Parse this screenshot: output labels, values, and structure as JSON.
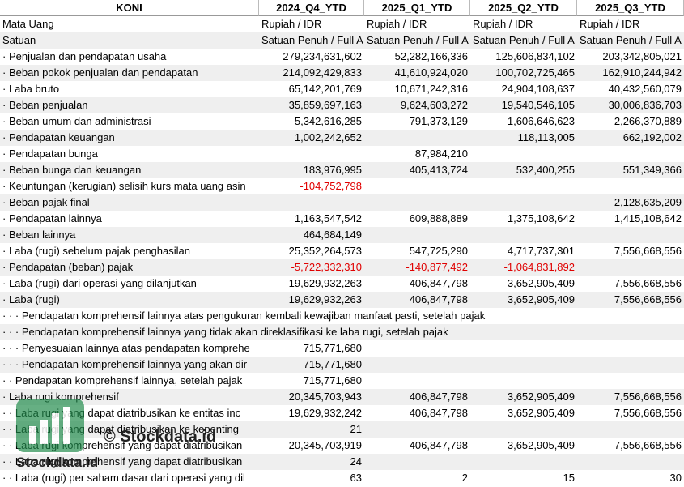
{
  "table": {
    "header": [
      "KONI",
      "2024_Q4_YTD",
      "2025_Q1_YTD",
      "2025_Q2_YTD",
      "2025_Q3_YTD"
    ],
    "rows": [
      [
        "Mata Uang",
        "Rupiah / IDR",
        "Rupiah / IDR",
        "Rupiah / IDR",
        "Rupiah / IDR"
      ],
      [
        "Satuan",
        "Satuan Penuh / Full A",
        "Satuan Penuh / Full A",
        "Satuan Penuh / Full A",
        "Satuan Penuh / Full A"
      ],
      [
        "· Penjualan dan pendapatan usaha",
        "279,234,631,602",
        "52,282,166,336",
        "125,606,834,102",
        "203,342,805,021"
      ],
      [
        "· Beban pokok penjualan dan pendapatan",
        "214,092,429,833",
        "41,610,924,020",
        "100,702,725,465",
        "162,910,244,942"
      ],
      [
        "· Laba bruto",
        "65,142,201,769",
        "10,671,242,316",
        "24,904,108,637",
        "40,432,560,079"
      ],
      [
        "· Beban penjualan",
        "35,859,697,163",
        "9,624,603,272",
        "19,540,546,105",
        "30,006,836,703"
      ],
      [
        "· Beban umum dan administrasi",
        "5,342,616,285",
        "791,373,129",
        "1,606,646,623",
        "2,266,370,889"
      ],
      [
        "· Pendapatan keuangan",
        "1,002,242,652",
        null,
        "118,113,005",
        "662,192,002"
      ],
      [
        "· Pendapatan bunga",
        null,
        "87,984,210",
        null,
        null
      ],
      [
        "· Beban bunga dan keuangan",
        "183,976,995",
        "405,413,724",
        "532,400,255",
        "551,349,366"
      ],
      [
        "· Keuntungan (kerugian) selisih kurs mata uang asin",
        "-104,752,798",
        null,
        null,
        null
      ],
      [
        "· Beban pajak final",
        null,
        null,
        null,
        "2,128,635,209"
      ],
      [
        "· Pendapatan lainnya",
        "1,163,547,542",
        "609,888,889",
        "1,375,108,642",
        "1,415,108,642"
      ],
      [
        "· Beban lainnya",
        "464,684,149",
        null,
        null,
        null
      ],
      [
        "· Laba (rugi) sebelum pajak penghasilan",
        "25,352,264,573",
        "547,725,290",
        "4,717,737,301",
        "7,556,668,556"
      ],
      [
        "· Pendapatan (beban) pajak",
        "-5,722,332,310",
        "-140,877,492",
        "-1,064,831,892",
        null
      ],
      [
        "· Laba (rugi) dari operasi yang dilanjutkan",
        "19,629,932,263",
        "406,847,798",
        "3,652,905,409",
        "7,556,668,556"
      ],
      [
        "· Laba (rugi)",
        "19,629,932,263",
        "406,847,798",
        "3,652,905,409",
        "7,556,668,556"
      ],
      [
        "· · · Pendapatan komprehensif lainnya atas pengukuran kembali kewajiban manfaat pasti, setelah pajak",
        null,
        null,
        null,
        null
      ],
      [
        "· · · Pendapatan komprehensif lainnya yang tidak akan direklasifikasi ke laba rugi, setelah pajak",
        null,
        null,
        null,
        null
      ],
      [
        "· · · Penyesuaian lainnya atas pendapatan komprehe",
        "715,771,680",
        null,
        null,
        null
      ],
      [
        "· · · Pendapatan komprehensif lainnya yang akan dir",
        "715,771,680",
        null,
        null,
        null
      ],
      [
        "· · Pendapatan komprehensif lainnya, setelah pajak",
        "715,771,680",
        null,
        null,
        null
      ],
      [
        "· Laba rugi komprehensif",
        "20,345,703,943",
        "406,847,798",
        "3,652,905,409",
        "7,556,668,556"
      ],
      [
        "· · Laba rugi yang dapat diatribusikan ke entitas inc",
        "19,629,932,242",
        "406,847,798",
        "3,652,905,409",
        "7,556,668,556"
      ],
      [
        "· · Laba rugi yang dapat diatribusikan ke kepenting",
        "21",
        null,
        null,
        null
      ],
      [
        "· · Laba rugi komprehensif yang dapat diatribusikan",
        "20,345,703,919",
        "406,847,798",
        "3,652,905,409",
        "7,556,668,556"
      ],
      [
        "· · Laba rugi komprehensif yang dapat diatribusikan",
        "24",
        null,
        null,
        null
      ],
      [
        "· · Laba (rugi) per saham dasar dari operasi yang dil",
        "63",
        "2",
        "15",
        "30"
      ]
    ]
  },
  "watermark": {
    "copyright": "© Stockdata.id",
    "brand": "Stockdata.id"
  }
}
